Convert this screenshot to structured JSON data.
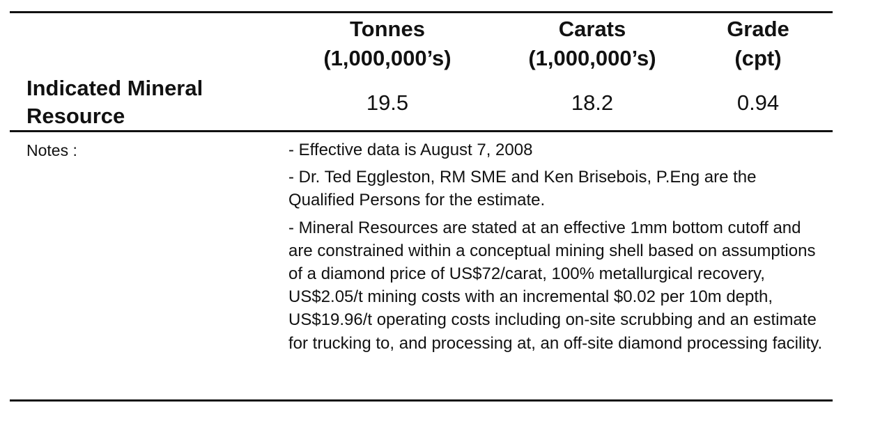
{
  "table": {
    "header": [
      "Tonnes (1,000,000’s)",
      "Carats (1,000,000’s)",
      "Grade (cpt)"
    ],
    "header_lines": [
      [
        "Tonnes",
        "(1,000,000’s)"
      ],
      [
        "Carats",
        "(1,000,000’s)"
      ],
      [
        "Grade",
        "(cpt)"
      ]
    ],
    "row_label_lines": [
      "Indicated Mineral",
      "Resource"
    ],
    "values": [
      "19.5",
      "18.2",
      "0.94"
    ]
  },
  "notes": {
    "label": "Notes :",
    "items": [
      "- Effective data is August 7, 2008",
      "- Dr. Ted Eggleston, RM SME and Ken Brisebois, P.Eng are the Qualified Persons for the estimate.",
      "- Mineral Resources are stated at an effective 1mm bottom cutoff and are constrained within a conceptual mining shell based on assumptions of a diamond price of US$72/carat, 100% metallurgical recovery, US$2.05/t mining costs with an incremental $0.02 per 10m depth, US$19.96/t operating costs including on-site scrubbing and an estimate for trucking to, and processing at, an off-site diamond processing facility."
    ]
  }
}
